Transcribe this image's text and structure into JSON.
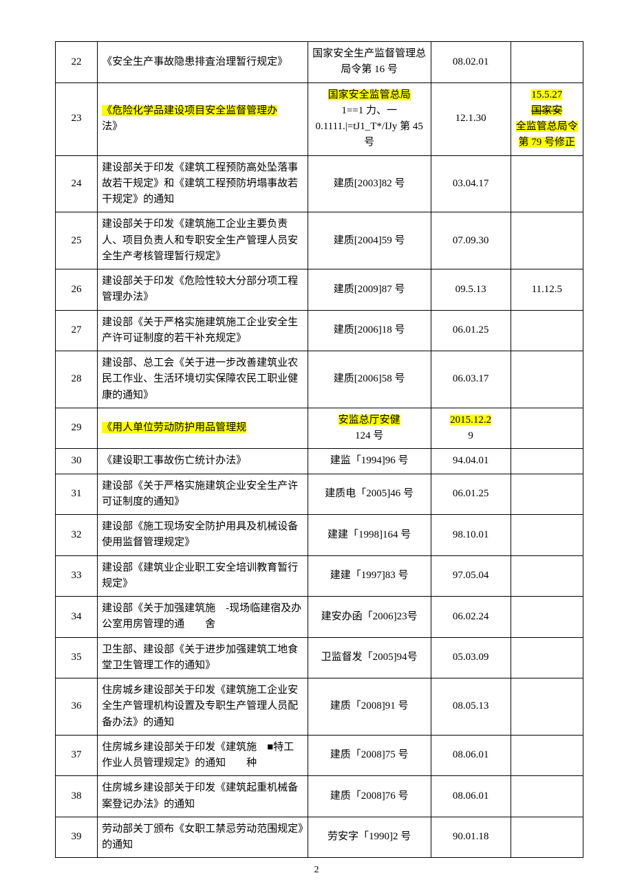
{
  "page_number": "2",
  "table": {
    "columns": [
      "idx",
      "title",
      "ref",
      "date",
      "note"
    ],
    "col_align": [
      "center",
      "left",
      "center",
      "center",
      "center"
    ],
    "rows": [
      {
        "idx": "22",
        "title_plain": "《安全生产事故隐患排査治理暂行规定》",
        "ref_plain": "国家安全生产监督管理总局令第 16 号",
        "date_plain": "08.02.01",
        "note_plain": ""
      },
      {
        "idx": "23",
        "title_parts": [
          {
            "text": "《危险化学品建设项目安全监督管理办",
            "hl": true
          },
          {
            "text": "法》",
            "hl": false
          }
        ],
        "ref_parts": [
          {
            "text": "国家安全监管总局",
            "hl": true
          },
          {
            "text": "1==1 力、一",
            "hl": false
          },
          {
            "text": "0.1111.|=tJ1_T*/IJy 第 45 号",
            "hl": false
          }
        ],
        "date_plain": "12.1.30",
        "note_parts": [
          {
            "text": "15.5.27",
            "hl": true
          },
          {
            "text": "国家安",
            "hl": true,
            "strike": true
          },
          {
            "text": "全监管总局令第 79 号修正",
            "hl": true
          }
        ]
      },
      {
        "idx": "24",
        "title_plain": "建设部关于印发《建筑工程预防高处坠落事故若干规定》和《建筑工程预防坍塌事故若干规定》的通知",
        "ref_plain": "建质[2003]82 号",
        "date_plain": "03.04.17",
        "note_plain": ""
      },
      {
        "idx": "25",
        "title_plain": "建设部关于印发《建筑施工企业主要负责人、项目负责人和专职安全生产管理人员安全生产考核管理暂行规定》",
        "ref_plain": "建质[2004]59 号",
        "date_plain": "07.09.30",
        "note_plain": ""
      },
      {
        "idx": "26",
        "title_plain": "建设部关于印发《危险性较大分部分项工程管理办法》",
        "ref_plain": "建质[2009]87 号",
        "date_plain": "09.5.13",
        "note_plain": "11.12.5"
      },
      {
        "idx": "27",
        "title_plain": "建设部《关于严格实施建筑施工企业安全生产许可证制度的若干补充规定》",
        "ref_plain": "建质[2006]18 号",
        "date_plain": "06.01.25",
        "note_plain": ""
      },
      {
        "idx": "28",
        "title_plain": "建设部、总工会《关于进一步改善建筑业农民工作业、生活环境切实保障农民工职业健康的通知》",
        "ref_plain": "建质[2006]58 号",
        "date_plain": "06.03.17",
        "note_plain": ""
      },
      {
        "idx": "29",
        "title_parts": [
          {
            "text": "《用人单位劳动防护用品管理规",
            "hl": true
          }
        ],
        "ref_parts": [
          {
            "text": "安监总厅安健",
            "hl": true
          },
          {
            "text": "124 号",
            "hl": false
          }
        ],
        "date_parts": [
          {
            "text": "2015.12.2",
            "hl": true
          },
          {
            "text": "9",
            "hl": false
          }
        ],
        "note_plain": ""
      },
      {
        "idx": "30",
        "title_plain": "《建设职工事故伤亡统计办法》",
        "ref_plain": "建监「1994]96 号",
        "date_plain": "94.04.01",
        "note_plain": ""
      },
      {
        "idx": "31",
        "title_plain": "建设部《关于严格实施建筑企业安全生产许可证制度的通知》",
        "ref_plain": "建质电「2005]46 号",
        "date_plain": "06.01.25",
        "note_plain": ""
      },
      {
        "idx": "32",
        "title_plain": "建设部《施工现场安全防护用具及机械设备使用监督管理规定》",
        "ref_plain": "建建「1998]164 号",
        "date_plain": "98.10.01",
        "note_plain": ""
      },
      {
        "idx": "33",
        "title_plain": "建设部《建筑业企业职工安全培训教育暂行规定》",
        "ref_plain": "建建「1997]83 号",
        "date_plain": "97.05.04",
        "note_plain": ""
      },
      {
        "idx": "34",
        "title_plain": "建设部《关于加强建筑施　-现场临建宿及办公室用房管理的通　　舍",
        "ref_plain": "建安办函「2006]23号",
        "date_plain": "06.02.24",
        "note_plain": ""
      },
      {
        "idx": "35",
        "title_plain": "卫生部、建设部《关于进步加强建筑工地食堂卫生管理工作的通知》",
        "ref_plain": "卫监督发「2005]94号",
        "date_plain": "05.03.09",
        "note_plain": ""
      },
      {
        "idx": "36",
        "title_plain": "住房城乡建设部关于印发《建筑施工企业安全生产管理机构设置及专职生产管理人员配备办法》的通知",
        "ref_plain": "建质「2008]91 号",
        "date_plain": "08.05.13",
        "note_plain": ""
      },
      {
        "idx": "37",
        "title_plain": "住房城乡建设部关于印发《建筑施　■特工作业人员管理规定》的通知　　种",
        "ref_plain": "建质「2008]75 号",
        "date_plain": "08.06.01",
        "note_plain": ""
      },
      {
        "idx": "38",
        "title_plain": "住房城乡建设部关于印发《建筑起重机械备案登记办法》的通知",
        "ref_plain": "建质「2008]76 号",
        "date_plain": "08.06.01",
        "note_plain": ""
      },
      {
        "idx": "39",
        "title_plain": "劳动部关丁颁布《女职工禁忌劳动范围规定》的通知",
        "ref_plain": "劳安字「1990]2 号",
        "date_plain": "90.01.18",
        "note_plain": ""
      }
    ]
  }
}
